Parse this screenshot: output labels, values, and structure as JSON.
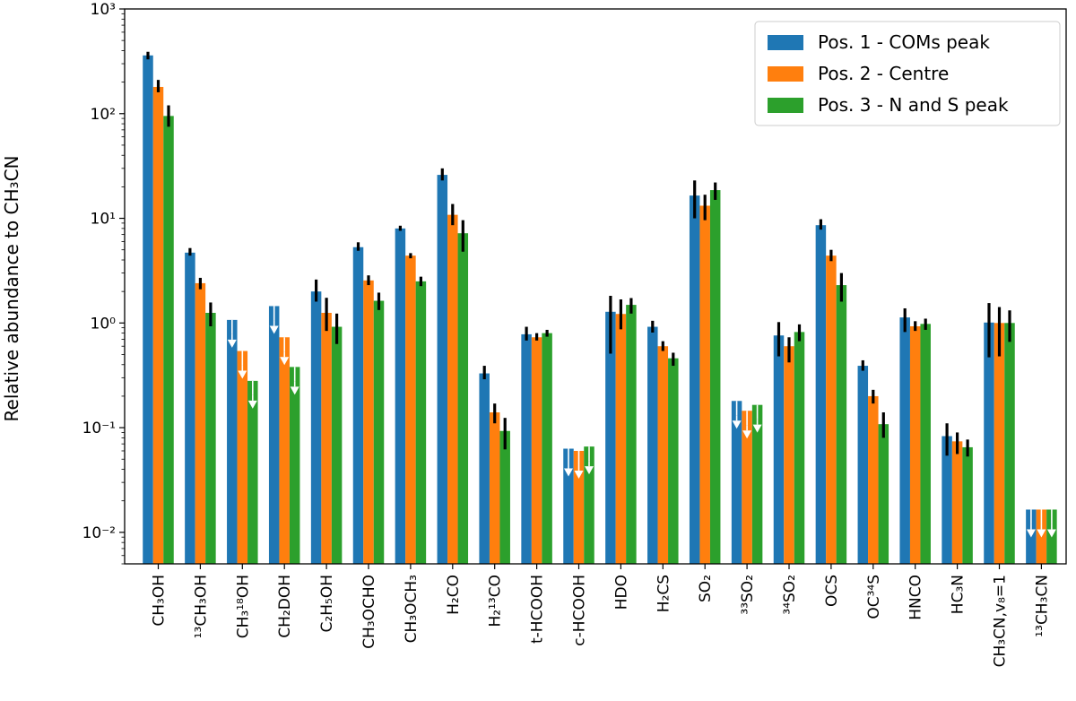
{
  "chart_data": {
    "type": "bar",
    "ylabel": "Relative abundance to CH₃CN",
    "yscale": "log",
    "ylim": [
      0.005,
      1000
    ],
    "yticks": [
      {
        "exp": -2,
        "label": "10⁻²"
      },
      {
        "exp": -1,
        "label": "10⁻¹"
      },
      {
        "exp": 0,
        "label": "10⁰"
      },
      {
        "exp": 1,
        "label": "10¹"
      },
      {
        "exp": 2,
        "label": "10²"
      },
      {
        "exp": 3,
        "label": "10³"
      }
    ],
    "legend_position": "top-right",
    "categories": [
      "CH₃OH",
      "¹³CH₃OH",
      "CH₃¹⁸OH",
      "CH₂DOH",
      "C₂H₅OH",
      "CH₃OCHO",
      "CH₃OCH₃",
      "H₂CO",
      "H₂¹³CO",
      "t-HCOOH",
      "c-HCOOH",
      "HDO",
      "H₂CS",
      "SO₂",
      "³³SO₂",
      "³⁴SO₂",
      "OCS",
      "OC³⁴S",
      "HNCO",
      "HC₃N",
      "CH₃CN,v₈=1",
      "¹³CH₃CN"
    ],
    "series": [
      {
        "name": "Pos. 1 - COMs peak",
        "color": "#1f77b4",
        "values": [
          360,
          4.7,
          1.07,
          1.45,
          2.0,
          5.3,
          8.0,
          26,
          0.33,
          0.78,
          0.063,
          1.28,
          0.92,
          16.5,
          0.18,
          0.76,
          8.6,
          0.39,
          1.13,
          0.083,
          1.01,
          0.0165
        ],
        "errors": [
          [
            330,
            390
          ],
          [
            4.4,
            5.2
          ],
          null,
          null,
          [
            1.6,
            2.6
          ],
          [
            4.9,
            5.9
          ],
          [
            7.6,
            8.5
          ],
          [
            23,
            30
          ],
          [
            0.29,
            0.39
          ],
          [
            0.68,
            0.92
          ],
          null,
          [
            0.51,
            1.82
          ],
          [
            0.81,
            1.05
          ],
          [
            10,
            23
          ],
          null,
          [
            0.48,
            1.02
          ],
          [
            7.8,
            9.8
          ],
          [
            0.35,
            0.44
          ],
          [
            0.82,
            1.38
          ],
          [
            0.054,
            0.11
          ],
          [
            0.47,
            1.55
          ],
          null
        ],
        "upper_limit": [
          false,
          false,
          true,
          true,
          false,
          false,
          false,
          false,
          false,
          false,
          true,
          false,
          false,
          false,
          true,
          false,
          false,
          false,
          false,
          false,
          false,
          true
        ]
      },
      {
        "name": "Pos. 2 - Centre",
        "color": "#ff7f0e",
        "values": [
          180,
          2.4,
          0.54,
          0.73,
          1.25,
          2.55,
          4.4,
          10.8,
          0.14,
          0.73,
          0.06,
          1.22,
          0.6,
          13.2,
          0.145,
          0.6,
          4.4,
          0.2,
          0.93,
          0.074,
          1.0,
          0.0165
        ],
        "errors": [
          [
            160,
            210
          ],
          [
            2.1,
            2.7
          ],
          null,
          null,
          [
            0.84,
            1.74
          ],
          [
            2.3,
            2.85
          ],
          [
            4.15,
            4.65
          ],
          [
            8.6,
            13.7
          ],
          [
            0.11,
            0.17
          ],
          [
            0.68,
            0.8
          ],
          null,
          [
            0.87,
            1.68
          ],
          [
            0.54,
            0.67
          ],
          [
            9.6,
            16.8
          ],
          null,
          [
            0.42,
            0.73
          ],
          [
            3.9,
            5.0
          ],
          [
            0.17,
            0.23
          ],
          [
            0.84,
            1.04
          ],
          [
            0.056,
            0.09
          ],
          [
            0.48,
            1.42
          ],
          null
        ],
        "upper_limit": [
          false,
          false,
          true,
          true,
          false,
          false,
          false,
          false,
          false,
          false,
          true,
          false,
          false,
          false,
          true,
          false,
          false,
          false,
          false,
          false,
          false,
          true
        ]
      },
      {
        "name": "Pos. 3 - N and S peak",
        "color": "#2ca02c",
        "values": [
          95,
          1.25,
          0.28,
          0.38,
          0.92,
          1.63,
          2.5,
          7.2,
          0.093,
          0.8,
          0.066,
          1.49,
          0.46,
          18.6,
          0.165,
          0.82,
          2.3,
          0.108,
          0.98,
          0.065,
          1.0,
          0.0165
        ],
        "errors": [
          [
            75,
            120
          ],
          [
            0.93,
            1.57
          ],
          null,
          null,
          [
            0.63,
            1.23
          ],
          [
            1.33,
            1.95
          ],
          [
            2.25,
            2.77
          ],
          [
            4.8,
            9.6
          ],
          [
            0.062,
            0.124
          ],
          [
            0.74,
            0.86
          ],
          null,
          [
            1.23,
            1.73
          ],
          [
            0.39,
            0.52
          ],
          [
            15.0,
            22.0
          ],
          null,
          [
            0.67,
            0.97
          ],
          [
            1.6,
            3.0
          ],
          [
            0.08,
            0.14
          ],
          [
            0.86,
            1.1
          ],
          [
            0.053,
            0.077
          ],
          [
            0.66,
            1.32
          ],
          null
        ],
        "upper_limit": [
          false,
          false,
          true,
          true,
          false,
          false,
          false,
          false,
          false,
          false,
          true,
          false,
          false,
          false,
          true,
          false,
          false,
          false,
          false,
          false,
          false,
          true
        ]
      }
    ]
  }
}
